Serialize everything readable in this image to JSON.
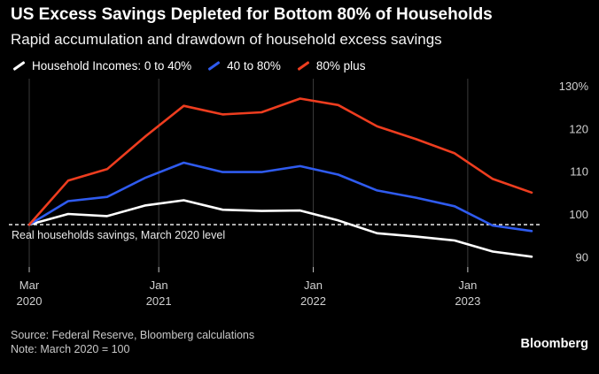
{
  "title": "US Excess Savings Depleted for Bottom 80% of Households",
  "subtitle": "Rapid accumulation and drawdown of household excess savings",
  "source": "Source: Federal Reserve, Bloomberg calculations",
  "note": "Note: March 2020 = 100",
  "brand": "Bloomberg",
  "colors": {
    "background": "#000000",
    "low": "#ffffff",
    "mid": "#2f5bef",
    "high": "#ee3d1f",
    "grid": "#3a3a3a",
    "reference": "#ffffff"
  },
  "chart_data": {
    "type": "line",
    "x_ticks": [
      {
        "date": "2020-03-01",
        "line1": "Mar",
        "line2": "2020"
      },
      {
        "date": "2021-01-01",
        "line1": "Jan",
        "line2": "2021"
      },
      {
        "date": "2022-01-01",
        "line1": "Jan",
        "line2": "2022"
      },
      {
        "date": "2023-01-01",
        "line1": "Jan",
        "line2": "2023"
      }
    ],
    "x": [
      "2020-03-01",
      "2020-06-01",
      "2020-09-01",
      "2020-12-01",
      "2021-03-01",
      "2021-06-01",
      "2021-09-01",
      "2021-12-01",
      "2022-03-01",
      "2022-06-01",
      "2022-09-01",
      "2022-12-01",
      "2023-03-01",
      "2023-06-01"
    ],
    "ylim": [
      88,
      130
    ],
    "y_ticks": [
      90,
      100,
      110,
      120,
      130
    ],
    "y_tick_labels": [
      "90",
      "100",
      "110",
      "120",
      "130%"
    ],
    "reference_line": {
      "value": 97.5,
      "label": "Real households savings, March 2020 level"
    },
    "grid": "vertical",
    "legend_position": "top-left",
    "series": [
      {
        "name": "Household Incomes: 0 to 40%",
        "color": "#ffffff",
        "values": [
          97.5,
          100,
          99.5,
          102,
          103.2,
          101,
          100.7,
          100.8,
          98.5,
          95.5,
          94.7,
          93.8,
          91.2,
          90
        ]
      },
      {
        "name": "40 to 80%",
        "color": "#2f5bef",
        "values": [
          97.5,
          103,
          104,
          108.5,
          112,
          109.8,
          109.8,
          111.2,
          109.2,
          105.5,
          103.8,
          101.8,
          97.3,
          96
        ]
      },
      {
        "name": "80% plus",
        "color": "#ee3d1f",
        "values": [
          97.5,
          107.8,
          110.5,
          118.2,
          125.3,
          123.3,
          123.8,
          127,
          125.5,
          120.5,
          117.5,
          114.2,
          108.2,
          105
        ]
      }
    ]
  }
}
